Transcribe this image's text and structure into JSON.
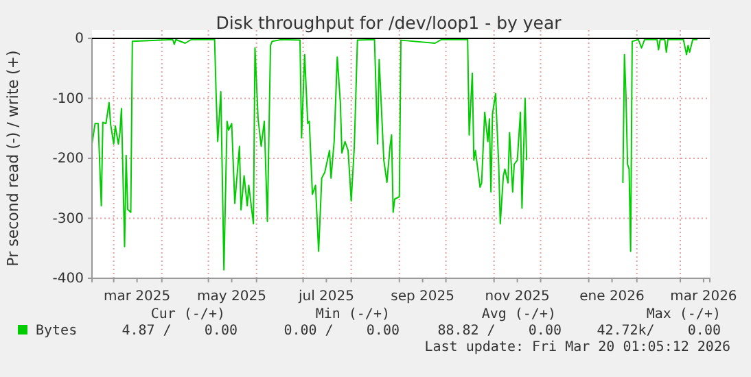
{
  "chart_data": {
    "type": "line",
    "title": "Disk throughput for /dev/loop1 - by year",
    "ylabel": "Pr second read (-) / write (+)",
    "x": [
      "2025-02-15",
      "2025-02-17",
      "2025-02-19",
      "2025-02-21",
      "2025-02-22",
      "2025-02-24",
      "2025-02-26",
      "2025-02-27",
      "2025-03-01",
      "2025-03-02",
      "2025-03-04",
      "2025-03-05",
      "2025-03-06",
      "2025-03-08",
      "2025-03-09",
      "2025-03-10",
      "2025-03-12",
      "2025-03-13",
      "2025-04-08",
      "2025-04-09",
      "2025-04-10",
      "2025-04-16",
      "2025-04-20",
      "2025-05-05",
      "2025-05-06",
      "2025-05-07",
      "2025-05-09",
      "2025-05-11",
      "2025-05-13",
      "2025-05-14",
      "2025-05-16",
      "2025-05-18",
      "2025-05-21",
      "2025-05-22",
      "2025-05-24",
      "2025-05-26",
      "2025-05-27",
      "2025-05-30",
      "2025-05-31",
      "2025-06-02",
      "2025-06-04",
      "2025-06-06",
      "2025-06-08",
      "2025-06-10",
      "2025-06-11",
      "2025-06-17",
      "2025-06-29",
      "2025-06-30",
      "2025-07-02",
      "2025-07-04",
      "2025-07-05",
      "2025-07-07",
      "2025-07-09",
      "2025-07-11",
      "2025-07-13",
      "2025-07-15",
      "2025-07-18",
      "2025-07-19",
      "2025-07-21",
      "2025-07-23",
      "2025-07-25",
      "2025-07-26",
      "2025-07-28",
      "2025-07-30",
      "2025-08-01",
      "2025-08-03",
      "2025-08-05",
      "2025-08-16",
      "2025-08-18",
      "2025-08-19",
      "2025-08-22",
      "2025-08-24",
      "2025-08-26",
      "2025-08-27",
      "2025-08-28",
      "2025-08-29",
      "2025-09-01",
      "2025-09-02",
      "2025-09-24",
      "2025-09-28",
      "2025-10-15",
      "2025-10-16",
      "2025-10-18",
      "2025-10-19",
      "2025-10-20",
      "2025-10-23",
      "2025-10-24",
      "2025-10-26",
      "2025-10-28",
      "2025-10-29",
      "2025-10-30",
      "2025-10-31",
      "2025-11-02",
      "2025-11-04",
      "2025-11-05",
      "2025-11-07",
      "2025-11-08",
      "2025-11-10",
      "2025-11-11",
      "2025-11-13",
      "2025-11-14",
      "2025-11-16",
      "2025-11-18",
      "2025-11-19",
      "2025-11-21",
      "2025-11-22",
      "2025-11-23",
      "2026-01-23",
      "2026-01-24",
      "2026-01-25",
      "2026-01-26",
      "2026-01-27",
      "2026-01-28",
      "2026-01-29",
      "2026-02-02",
      "2026-02-04",
      "2026-02-06",
      "2026-02-14",
      "2026-02-15",
      "2026-02-16",
      "2026-02-19",
      "2026-02-20",
      "2026-02-21",
      "2026-03-03",
      "2026-03-05",
      "2026-03-06",
      "2026-03-07",
      "2026-03-09",
      "2026-03-12"
    ],
    "series": [
      {
        "name": "Bytes",
        "color": "#00cc00",
        "values": [
          -176,
          -142,
          -142,
          -279,
          -140,
          -142,
          -107,
          -143,
          -176,
          -146,
          -176,
          -157,
          -117,
          -347,
          -195,
          -285,
          -290,
          -5,
          -2,
          -10,
          -2,
          -8,
          -2,
          -2,
          -96,
          -172,
          -89,
          -386,
          -138,
          -153,
          -142,
          -275,
          -180,
          -286,
          -229,
          -279,
          -245,
          -309,
          -16,
          -134,
          -180,
          -138,
          -305,
          -12,
          -5,
          -2,
          -3,
          -166,
          -27,
          -142,
          -138,
          -260,
          -245,
          -355,
          -233,
          -223,
          -187,
          -233,
          -172,
          -31,
          -107,
          -191,
          -172,
          -187,
          -271,
          -180,
          -3,
          -2,
          -176,
          -35,
          -203,
          -240,
          -180,
          -161,
          -290,
          -268,
          -264,
          -3,
          -8,
          -2,
          -2,
          -161,
          -58,
          -203,
          -187,
          -248,
          -241,
          -123,
          -172,
          -134,
          -256,
          -126,
          -92,
          -210,
          -309,
          -229,
          -218,
          -241,
          -157,
          -256,
          -210,
          -203,
          -123,
          -283,
          -100,
          -203,
          null,
          -241,
          -27,
          -96,
          -210,
          -218,
          -355,
          -5,
          -2,
          -16,
          -2,
          -2,
          -19,
          -2,
          -2,
          -23,
          -2,
          -2,
          -27,
          -12,
          -23,
          -2,
          -2
        ]
      }
    ],
    "xlim": [
      "2025-02-15",
      "2026-03-20"
    ],
    "xticks": [
      {
        "value": "2025-03-01",
        "label": null
      },
      {
        "value": "2025-03-16",
        "label": "mar 2025"
      },
      {
        "value": "2025-04-01",
        "label": null
      },
      {
        "value": "2025-05-01",
        "label": null
      },
      {
        "value": "2025-05-16",
        "label": "may 2025"
      },
      {
        "value": "2025-06-01",
        "label": null
      },
      {
        "value": "2025-07-01",
        "label": null
      },
      {
        "value": "2025-07-16",
        "label": "jul 2025"
      },
      {
        "value": "2025-08-01",
        "label": null
      },
      {
        "value": "2025-09-01",
        "label": null
      },
      {
        "value": "2025-09-16",
        "label": "sep 2025"
      },
      {
        "value": "2025-10-01",
        "label": null
      },
      {
        "value": "2025-11-01",
        "label": null
      },
      {
        "value": "2025-11-16",
        "label": "nov 2025"
      },
      {
        "value": "2025-12-01",
        "label": null
      },
      {
        "value": "2026-01-01",
        "label": null
      },
      {
        "value": "2026-01-16",
        "label": "ene 2026"
      },
      {
        "value": "2026-02-01",
        "label": null
      },
      {
        "value": "2026-03-01",
        "label": null
      },
      {
        "value": "2026-03-16",
        "label": "mar 2026"
      }
    ],
    "ylim": [
      -400,
      0
    ],
    "yticks": [
      -400,
      -300,
      -200,
      -100,
      0
    ],
    "grid": true,
    "legend": "bottom",
    "annotations": [
      "Cur (-/+)",
      "Min (-/+)",
      "Avg (-/+)",
      "Max (-/+)",
      "4.87 /    0.00",
      "0.00 /    0.00",
      "88.82 /    0.00",
      "42.72k/    0.00",
      "Last update: Fri Mar 20 01:05:12 2026"
    ]
  }
}
